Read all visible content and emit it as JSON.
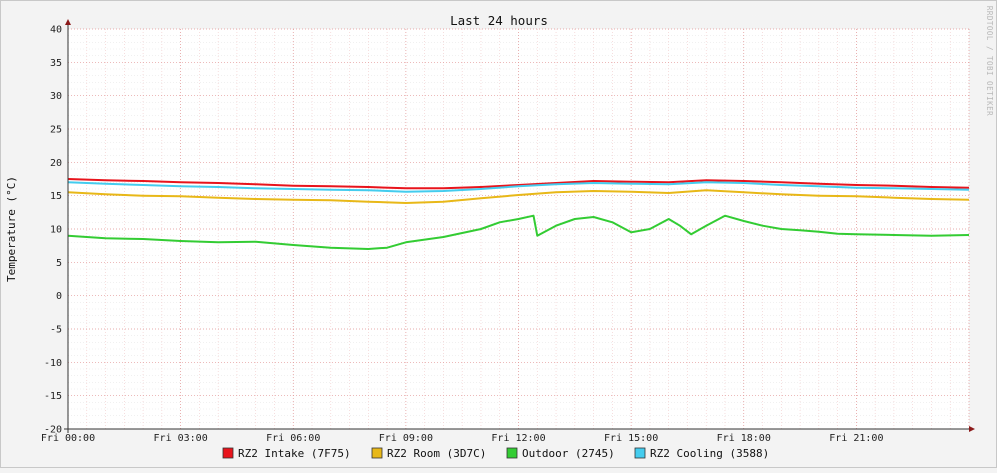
{
  "chart_data": {
    "type": "line",
    "title": "Last 24 hours",
    "ylabel": "Temperature (°C)",
    "watermark": "RRDTOOL / TOBI OETIKER",
    "ylim": [
      -20,
      40
    ],
    "y_ticks": [
      "40",
      "35",
      "30",
      "25",
      "20",
      "15",
      "10",
      "5",
      "0",
      "-5",
      "-10",
      "-15",
      "-20"
    ],
    "x_ticks": [
      "Fri 00:00",
      "Fri 03:00",
      "Fri 06:00",
      "Fri 09:00",
      "Fri 12:00",
      "Fri 15:00",
      "Fri 18:00",
      "Fri 21:00"
    ],
    "x_unit_hours": [
      0,
      24
    ],
    "series": [
      {
        "name": "RZ2 Intake (7F75)",
        "color": "#e8141c",
        "x": [
          0,
          1,
          2,
          3,
          4,
          5,
          6,
          7,
          8,
          9,
          10,
          11,
          12,
          13,
          14,
          15,
          16,
          17,
          18,
          19,
          20,
          21,
          22,
          23,
          24
        ],
        "values": [
          17.5,
          17.3,
          17.2,
          17.0,
          16.9,
          16.7,
          16.5,
          16.4,
          16.3,
          16.1,
          16.1,
          16.3,
          16.6,
          16.9,
          17.2,
          17.1,
          17.0,
          17.3,
          17.2,
          17.0,
          16.8,
          16.6,
          16.5,
          16.3,
          16.2
        ]
      },
      {
        "name": "RZ2 Room (3D7C)",
        "color": "#e8b818",
        "x": [
          0,
          1,
          2,
          3,
          4,
          5,
          6,
          7,
          8,
          9,
          10,
          11,
          12,
          13,
          14,
          15,
          16,
          17,
          18,
          19,
          20,
          21,
          22,
          23,
          24
        ],
        "values": [
          15.5,
          15.2,
          15.0,
          14.9,
          14.7,
          14.5,
          14.4,
          14.3,
          14.1,
          13.9,
          14.1,
          14.6,
          15.1,
          15.5,
          15.7,
          15.6,
          15.4,
          15.8,
          15.5,
          15.2,
          15.0,
          14.9,
          14.7,
          14.5,
          14.4
        ]
      },
      {
        "name": "Outdoor (2745)",
        "color": "#33cc33",
        "x": [
          0,
          1,
          2,
          3,
          4,
          5,
          6,
          7,
          8,
          8.5,
          9,
          10,
          11,
          11.5,
          12,
          12.4,
          12.5,
          13,
          13.5,
          14,
          14.5,
          15,
          15.5,
          16,
          16.3,
          16.6,
          17,
          17.5,
          18,
          18.5,
          19,
          19.5,
          20,
          20.5,
          21,
          22,
          23,
          24
        ],
        "values": [
          9.0,
          8.6,
          8.5,
          8.2,
          8.0,
          8.1,
          7.6,
          7.2,
          7.0,
          7.2,
          8.0,
          8.8,
          10.0,
          11.0,
          11.5,
          12.0,
          9.0,
          10.5,
          11.5,
          11.8,
          11.0,
          9.5,
          10.0,
          11.5,
          10.5,
          9.2,
          10.5,
          12.0,
          11.2,
          10.5,
          10.0,
          9.8,
          9.6,
          9.3,
          9.2,
          9.1,
          9.0,
          9.1
        ]
      },
      {
        "name": "RZ2 Cooling (3588)",
        "color": "#44ccee",
        "x": [
          0,
          1,
          2,
          3,
          4,
          5,
          6,
          7,
          8,
          9,
          10,
          11,
          12,
          13,
          14,
          15,
          16,
          17,
          18,
          19,
          20,
          21,
          22,
          23,
          24
        ],
        "values": [
          17.0,
          16.8,
          16.6,
          16.4,
          16.3,
          16.1,
          16.0,
          15.9,
          15.8,
          15.6,
          15.7,
          16.0,
          16.4,
          16.7,
          16.9,
          16.8,
          16.7,
          17.0,
          16.9,
          16.6,
          16.4,
          16.2,
          16.1,
          16.0,
          15.9
        ]
      }
    ],
    "grid": true,
    "legend_position": "bottom"
  }
}
